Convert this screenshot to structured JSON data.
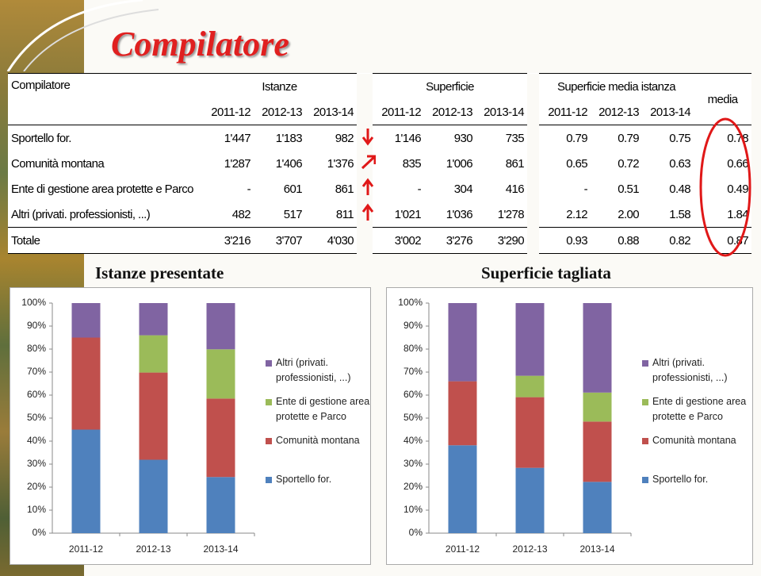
{
  "title": "Compilatore",
  "table": {
    "header": {
      "label": "Compilatore",
      "groups": [
        "Istanze",
        "Superficie",
        "Superficie media istanza"
      ],
      "media": "media",
      "years": [
        "2011-12",
        "2012-13",
        "2013-14"
      ]
    },
    "rows": [
      [
        "Sportello for.",
        "1'447",
        "1'183",
        "982",
        "1'146",
        "930",
        "735",
        "0.79",
        "0.79",
        "0.75",
        "0.78"
      ],
      [
        "Comunità montana",
        "1'287",
        "1'406",
        "1'376",
        "835",
        "1'006",
        "861",
        "0.65",
        "0.72",
        "0.63",
        "0.66"
      ],
      [
        "Ente di gestione area protette e Parco",
        "-",
        "601",
        "861",
        "-",
        "304",
        "416",
        "-",
        "0.51",
        "0.48",
        "0.49"
      ],
      [
        "Altri (privati. professionisti, ...)",
        "482",
        "517",
        "811",
        "1'021",
        "1'036",
        "1'278",
        "2.12",
        "2.00",
        "1.58",
        "1.84"
      ],
      [
        "Totale",
        "3'216",
        "3'707",
        "4'030",
        "3'002",
        "3'276",
        "3'290",
        "0.93",
        "0.88",
        "0.82",
        "0.87"
      ]
    ]
  },
  "chart_data": [
    {
      "type": "bar",
      "stacked": true,
      "title": "Istanze presentate",
      "categories": [
        "2011-12",
        "2012-13",
        "2013-14"
      ],
      "series": [
        {
          "name": "Sportello for.",
          "color": "#4f81bd",
          "values": [
            45.0,
            31.9,
            24.4
          ]
        },
        {
          "name": "Comunità montana",
          "color": "#c0504d",
          "values": [
            40.0,
            37.9,
            34.1
          ]
        },
        {
          "name": "Ente di gestione area protette e Parco",
          "color": "#9bbb59",
          "values": [
            0,
            16.2,
            21.4
          ]
        },
        {
          "name": "Altri (privati. professionisti, ...)",
          "color": "#8064a2",
          "values": [
            15.0,
            14.0,
            20.1
          ]
        }
      ],
      "ylim": [
        0,
        100
      ],
      "yticks": [
        {
          "value": 0,
          "label": "0%"
        },
        {
          "value": 10,
          "label": "10%"
        },
        {
          "value": 20,
          "label": "20%"
        },
        {
          "value": 30,
          "label": "30%"
        },
        {
          "value": 40,
          "label": "40%"
        },
        {
          "value": 50,
          "label": "50%"
        },
        {
          "value": 60,
          "label": "60%"
        },
        {
          "value": 70,
          "label": "70%"
        },
        {
          "value": 80,
          "label": "80%"
        },
        {
          "value": 90,
          "label": "90%"
        },
        {
          "value": 100,
          "label": "100%"
        }
      ],
      "legend": "right"
    },
    {
      "type": "bar",
      "stacked": true,
      "title": "Superficie tagliata",
      "categories": [
        "2011-12",
        "2012-13",
        "2013-14"
      ],
      "series": [
        {
          "name": "Sportello for.",
          "color": "#4f81bd",
          "values": [
            38.2,
            28.4,
            22.3
          ]
        },
        {
          "name": "Comunità montana",
          "color": "#c0504d",
          "values": [
            27.8,
            30.7,
            26.2
          ]
        },
        {
          "name": "Ente di gestione area protette e Parco",
          "color": "#9bbb59",
          "values": [
            0,
            9.3,
            12.6
          ]
        },
        {
          "name": "Altri (privati. professionisti, ...)",
          "color": "#8064a2",
          "values": [
            34.0,
            31.6,
            38.9
          ]
        }
      ],
      "ylim": [
        0,
        100
      ],
      "yticks": [
        {
          "value": 0,
          "label": "0%"
        },
        {
          "value": 10,
          "label": "10%"
        },
        {
          "value": 20,
          "label": "20%"
        },
        {
          "value": 30,
          "label": "30%"
        },
        {
          "value": 40,
          "label": "40%"
        },
        {
          "value": 50,
          "label": "50%"
        },
        {
          "value": 60,
          "label": "60%"
        },
        {
          "value": 70,
          "label": "70%"
        },
        {
          "value": 80,
          "label": "80%"
        },
        {
          "value": 90,
          "label": "90%"
        },
        {
          "value": 100,
          "label": "100%"
        }
      ],
      "legend": "right"
    }
  ]
}
